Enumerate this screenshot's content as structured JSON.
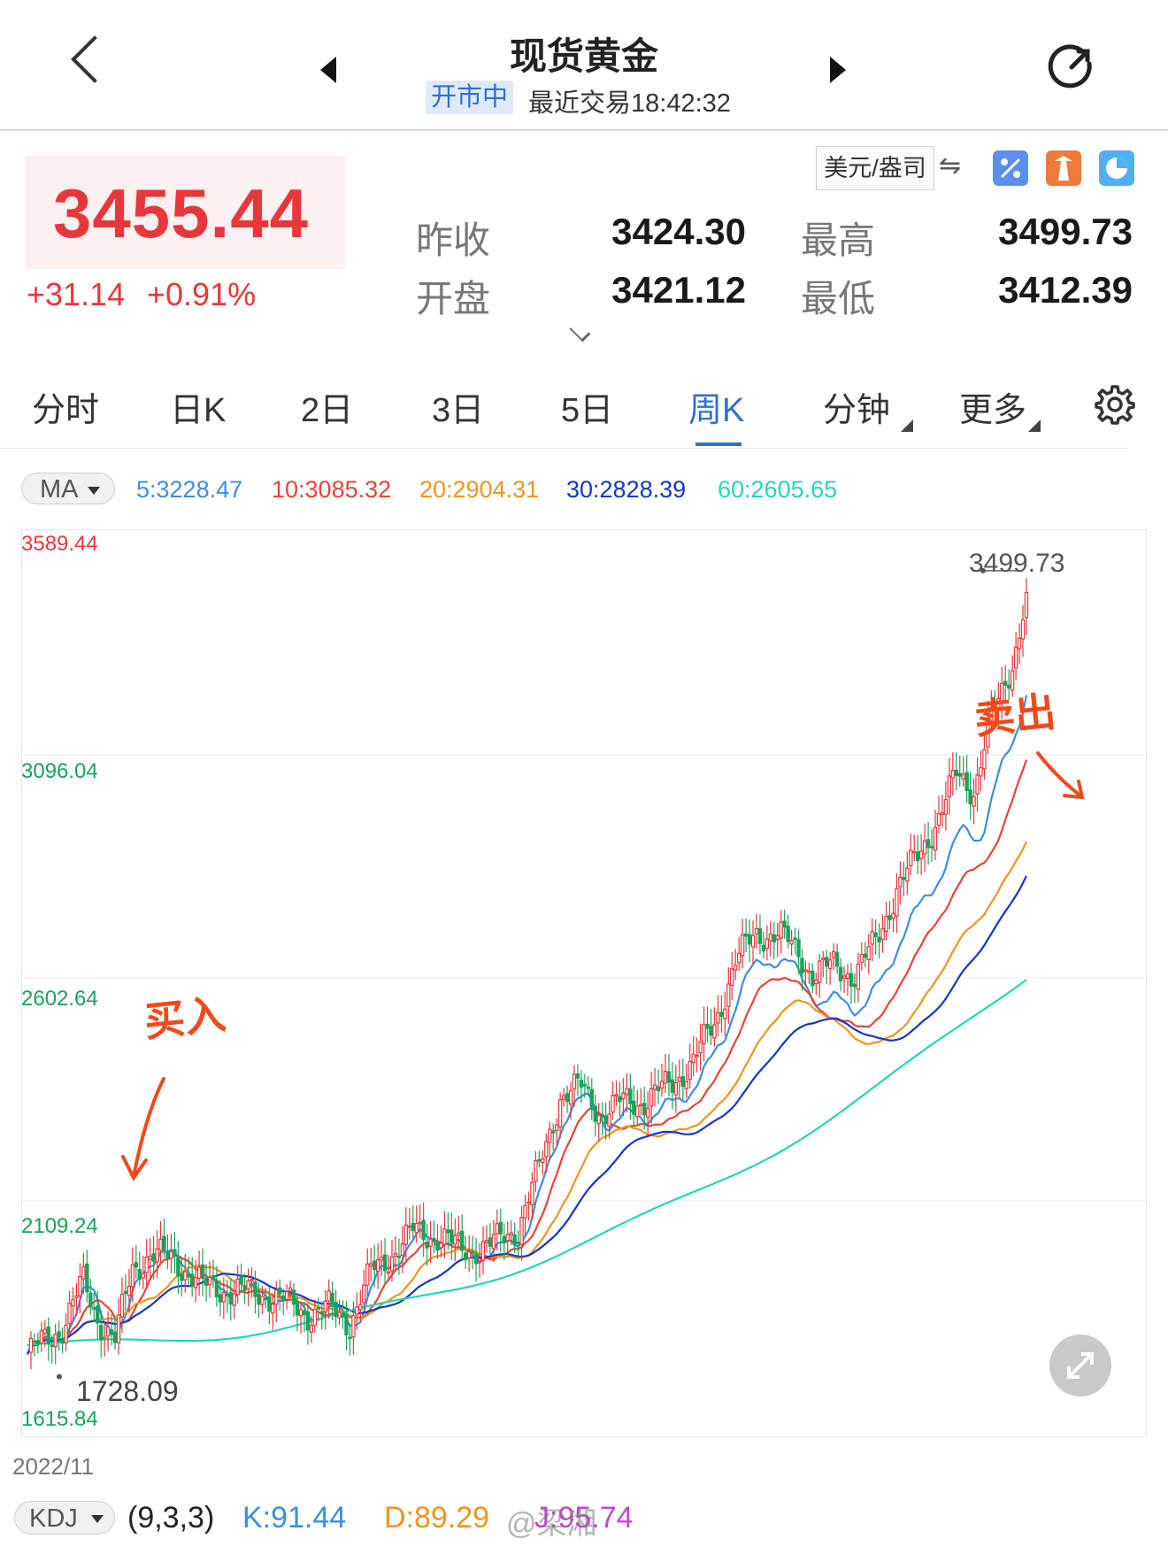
{
  "header": {
    "title": "现货黄金",
    "status_badge": "开市中",
    "last_trade": "最近交易18:42:32"
  },
  "quote": {
    "price": "3455.44",
    "change": "+31.14",
    "change_pct": "+0.91%",
    "unit": "美元/盎司",
    "prev_close_label": "昨收",
    "prev_close": "3424.30",
    "open_label": "开盘",
    "open": "3421.12",
    "high_label": "最高",
    "high": "3499.73",
    "low_label": "最低",
    "low": "3412.39"
  },
  "tabs": [
    "分时",
    "日K",
    "2日",
    "3日",
    "5日",
    "周K",
    "分钟",
    "更多"
  ],
  "active_tab": "周K",
  "ma": {
    "button_label": "MA",
    "items": [
      {
        "text": "5:3228.47",
        "color": "#3d8ee0"
      },
      {
        "text": "10:3085.32",
        "color": "#e8443a"
      },
      {
        "text": "20:2904.31",
        "color": "#f0961e"
      },
      {
        "text": "30:2828.39",
        "color": "#1437c8"
      },
      {
        "text": "60:2605.65",
        "color": "#25d6b8"
      }
    ]
  },
  "chart_data": {
    "type": "candlestick",
    "y_axis_labels": [
      "3589.44",
      "3096.04",
      "2602.64",
      "2109.24",
      "1615.84"
    ],
    "y_range": [
      1615.84,
      3589.44
    ],
    "high_marker": "3499.73",
    "low_marker": "1728.09",
    "start_date": "2022/11",
    "annotations": [
      "买入",
      "卖出"
    ],
    "up_color": "#e8373b",
    "down_color": "#1aa35a",
    "series": [
      {
        "name": "MA5",
        "color": "#3d8ee0",
        "last": 3228.47
      },
      {
        "name": "MA10",
        "color": "#e8443a",
        "last": 3085.32
      },
      {
        "name": "MA20",
        "color": "#f0961e",
        "last": 2904.31
      },
      {
        "name": "MA30",
        "color": "#1437c8",
        "last": 2828.39
      },
      {
        "name": "MA60",
        "color": "#25d6b8",
        "last": 2605.65
      }
    ]
  },
  "kdj": {
    "button_label": "KDJ",
    "params": "(9,3,3)",
    "k": "K:91.44",
    "d": "D:89.29",
    "j": "J:95.74"
  },
  "watermark": "@梁湘"
}
